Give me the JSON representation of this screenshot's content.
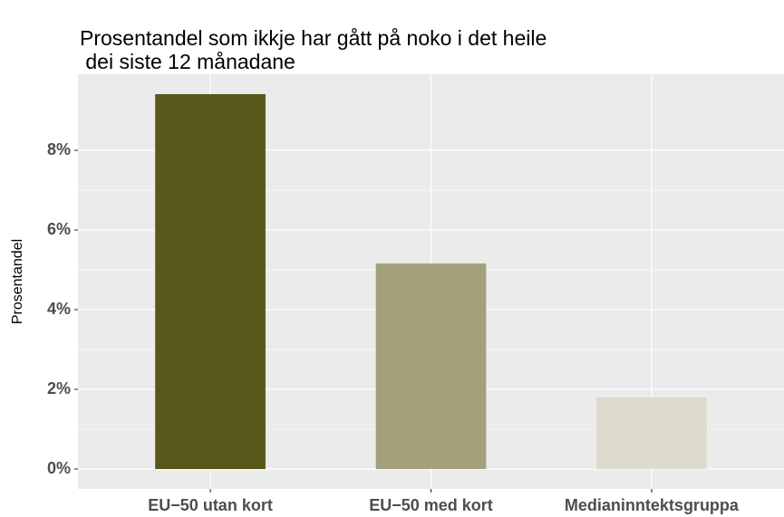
{
  "chart_data": {
    "type": "bar",
    "title": [
      "Prosentandel som ikkje har gått på noko i det heile",
      " dei siste 12 månadane"
    ],
    "y_label": "Prosentandel",
    "categories": [
      "EU−50 utan kort",
      "EU−50 med kort",
      "Medianinntektsgruppa"
    ],
    "values": [
      9.41,
      5.16,
      1.8
    ],
    "colors": [
      "#575719",
      "#a3a07c",
      "#dcdbce"
    ],
    "ylim": [
      -0.5,
      9.91
    ],
    "yticks": [
      {
        "value": 0,
        "label": "0%"
      },
      {
        "value": 2,
        "label": "2%"
      },
      {
        "value": 4,
        "label": "4%"
      },
      {
        "value": 6,
        "label": "6%"
      },
      {
        "value": 8,
        "label": "8%"
      }
    ],
    "grid": true
  }
}
